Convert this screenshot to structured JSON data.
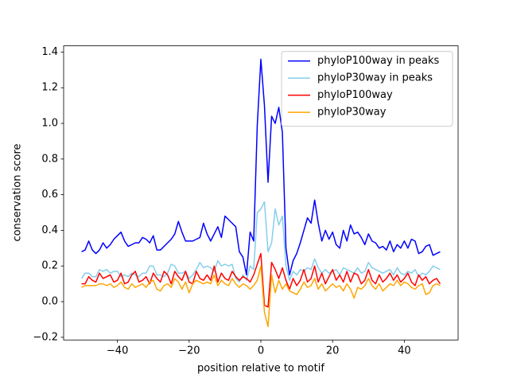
{
  "chart_data": {
    "type": "line",
    "xlabel": "position relative to motif",
    "ylabel": "conservation score",
    "x": [
      -50,
      -49,
      -48,
      -47,
      -46,
      -45,
      -44,
      -43,
      -42,
      -41,
      -40,
      -39,
      -38,
      -37,
      -36,
      -35,
      -34,
      -33,
      -32,
      -31,
      -30,
      -29,
      -28,
      -27,
      -26,
      -25,
      -24,
      -23,
      -22,
      -21,
      -20,
      -19,
      -18,
      -17,
      -16,
      -15,
      -14,
      -13,
      -12,
      -11,
      -10,
      -9,
      -8,
      -7,
      -6,
      -5,
      -4,
      -3,
      -2,
      -1,
      0,
      1,
      2,
      3,
      4,
      5,
      6,
      7,
      8,
      9,
      10,
      11,
      12,
      13,
      14,
      15,
      16,
      17,
      18,
      19,
      20,
      21,
      22,
      23,
      24,
      25,
      26,
      27,
      28,
      29,
      30,
      31,
      32,
      33,
      34,
      35,
      36,
      37,
      38,
      39,
      40,
      41,
      42,
      43,
      44,
      45,
      46,
      47,
      48,
      49,
      50
    ],
    "series": [
      {
        "name": "phyloP100way in peaks",
        "color": "#0000ff",
        "values": [
          0.28,
          0.29,
          0.34,
          0.29,
          0.27,
          0.29,
          0.33,
          0.3,
          0.32,
          0.35,
          0.37,
          0.39,
          0.34,
          0.31,
          0.32,
          0.33,
          0.33,
          0.36,
          0.35,
          0.33,
          0.37,
          0.29,
          0.29,
          0.31,
          0.33,
          0.35,
          0.38,
          0.45,
          0.39,
          0.34,
          0.34,
          0.34,
          0.35,
          0.36,
          0.44,
          0.38,
          0.34,
          0.38,
          0.42,
          0.36,
          0.48,
          0.46,
          0.44,
          0.42,
          0.28,
          0.25,
          0.15,
          0.39,
          0.34,
          0.99,
          1.36,
          1.1,
          0.67,
          1.04,
          1.0,
          1.09,
          0.95,
          0.3,
          0.15,
          0.23,
          0.27,
          0.33,
          0.4,
          0.47,
          0.44,
          0.57,
          0.44,
          0.34,
          0.4,
          0.35,
          0.39,
          0.32,
          0.3,
          0.4,
          0.34,
          0.43,
          0.38,
          0.39,
          0.36,
          0.32,
          0.38,
          0.34,
          0.33,
          0.3,
          0.31,
          0.29,
          0.34,
          0.28,
          0.32,
          0.3,
          0.34,
          0.3,
          0.35,
          0.34,
          0.27,
          0.28,
          0.31,
          0.32,
          0.26,
          0.27,
          0.28
        ]
      },
      {
        "name": "phyloP30way in peaks",
        "color": "#87ceeb",
        "values": [
          0.13,
          0.16,
          0.16,
          0.14,
          0.14,
          0.18,
          0.17,
          0.18,
          0.16,
          0.17,
          0.17,
          0.14,
          0.15,
          0.14,
          0.16,
          0.15,
          0.14,
          0.16,
          0.16,
          0.2,
          0.2,
          0.15,
          0.15,
          0.14,
          0.16,
          0.21,
          0.2,
          0.16,
          0.16,
          0.17,
          0.13,
          0.15,
          0.18,
          0.22,
          0.19,
          0.2,
          0.19,
          0.17,
          0.23,
          0.2,
          0.21,
          0.2,
          0.21,
          0.13,
          0.11,
          0.15,
          0.12,
          0.2,
          0.18,
          0.5,
          0.52,
          0.56,
          0.28,
          0.33,
          0.52,
          0.43,
          0.48,
          0.2,
          0.12,
          0.17,
          0.15,
          0.18,
          0.17,
          0.19,
          0.18,
          0.24,
          0.19,
          0.16,
          0.18,
          0.16,
          0.17,
          0.18,
          0.15,
          0.19,
          0.18,
          0.17,
          0.16,
          0.19,
          0.16,
          0.17,
          0.22,
          0.19,
          0.18,
          0.17,
          0.16,
          0.17,
          0.18,
          0.15,
          0.19,
          0.16,
          0.15,
          0.17,
          0.16,
          0.18,
          0.14,
          0.16,
          0.15,
          0.17,
          0.2,
          0.19,
          0.18
        ]
      },
      {
        "name": "phyloP100way",
        "color": "#ff0000",
        "values": [
          0.1,
          0.1,
          0.14,
          0.12,
          0.11,
          0.16,
          0.13,
          0.14,
          0.15,
          0.11,
          0.12,
          0.16,
          0.1,
          0.11,
          0.15,
          0.17,
          0.11,
          0.12,
          0.14,
          0.1,
          0.16,
          0.13,
          0.11,
          0.17,
          0.15,
          0.1,
          0.17,
          0.14,
          0.12,
          0.17,
          0.11,
          0.1,
          0.17,
          0.13,
          0.12,
          0.15,
          0.12,
          0.2,
          0.11,
          0.16,
          0.13,
          0.12,
          0.17,
          0.14,
          0.12,
          0.14,
          0.13,
          0.11,
          0.15,
          0.21,
          0.27,
          -0.02,
          -0.03,
          0.22,
          0.18,
          0.13,
          0.19,
          0.12,
          0.07,
          0.13,
          0.09,
          0.12,
          0.18,
          0.11,
          0.13,
          0.2,
          0.11,
          0.16,
          0.1,
          0.14,
          0.18,
          0.12,
          0.15,
          0.11,
          0.17,
          0.11,
          0.16,
          0.15,
          0.1,
          0.12,
          0.18,
          0.12,
          0.1,
          0.15,
          0.11,
          0.13,
          0.16,
          0.12,
          0.15,
          0.11,
          0.13,
          0.16,
          0.11,
          0.09,
          0.15,
          0.12,
          0.14,
          0.1,
          0.12,
          0.13,
          0.1
        ]
      },
      {
        "name": "phyloP30way",
        "color": "#ffa500",
        "values": [
          0.08,
          0.09,
          0.09,
          0.09,
          0.09,
          0.1,
          0.1,
          0.09,
          0.1,
          0.08,
          0.09,
          0.11,
          0.08,
          0.07,
          0.1,
          0.08,
          0.09,
          0.1,
          0.08,
          0.11,
          0.12,
          0.07,
          0.06,
          0.09,
          0.1,
          0.08,
          0.13,
          0.11,
          0.07,
          0.11,
          0.05,
          0.1,
          0.12,
          0.11,
          0.1,
          0.11,
          0.1,
          0.15,
          0.09,
          0.12,
          0.1,
          0.09,
          0.13,
          0.1,
          0.08,
          0.1,
          0.09,
          0.07,
          0.09,
          0.12,
          0.2,
          -0.06,
          -0.14,
          0.15,
          0.05,
          0.12,
          0.07,
          0.1,
          0.06,
          0.05,
          0.04,
          0.07,
          0.11,
          0.08,
          0.09,
          0.13,
          0.07,
          0.1,
          0.06,
          0.08,
          0.1,
          0.08,
          0.09,
          0.06,
          0.1,
          0.07,
          0.02,
          0.08,
          0.07,
          0.09,
          0.13,
          0.09,
          0.07,
          0.1,
          0.06,
          0.08,
          0.1,
          0.09,
          0.12,
          0.09,
          0.11,
          0.1,
          0.08,
          0.07,
          0.09,
          0.1,
          0.04,
          0.05,
          0.09,
          0.1,
          0.09
        ]
      }
    ],
    "xlim": [
      -55,
      55
    ],
    "xticks": [
      {
        "value": -40,
        "label": "−40"
      },
      {
        "value": -20,
        "label": "−20"
      },
      0,
      20,
      40
    ],
    "ylim": [
      -0.215,
      1.435
    ],
    "yticks": [
      {
        "value": -0.2,
        "label": "−0.2"
      },
      {
        "value": 0,
        "label": "0.0"
      },
      0.2,
      0.4,
      0.6,
      0.8,
      {
        "value": 1,
        "label": "1.0"
      },
      1.2,
      1.4
    ],
    "legend": "upper right"
  }
}
